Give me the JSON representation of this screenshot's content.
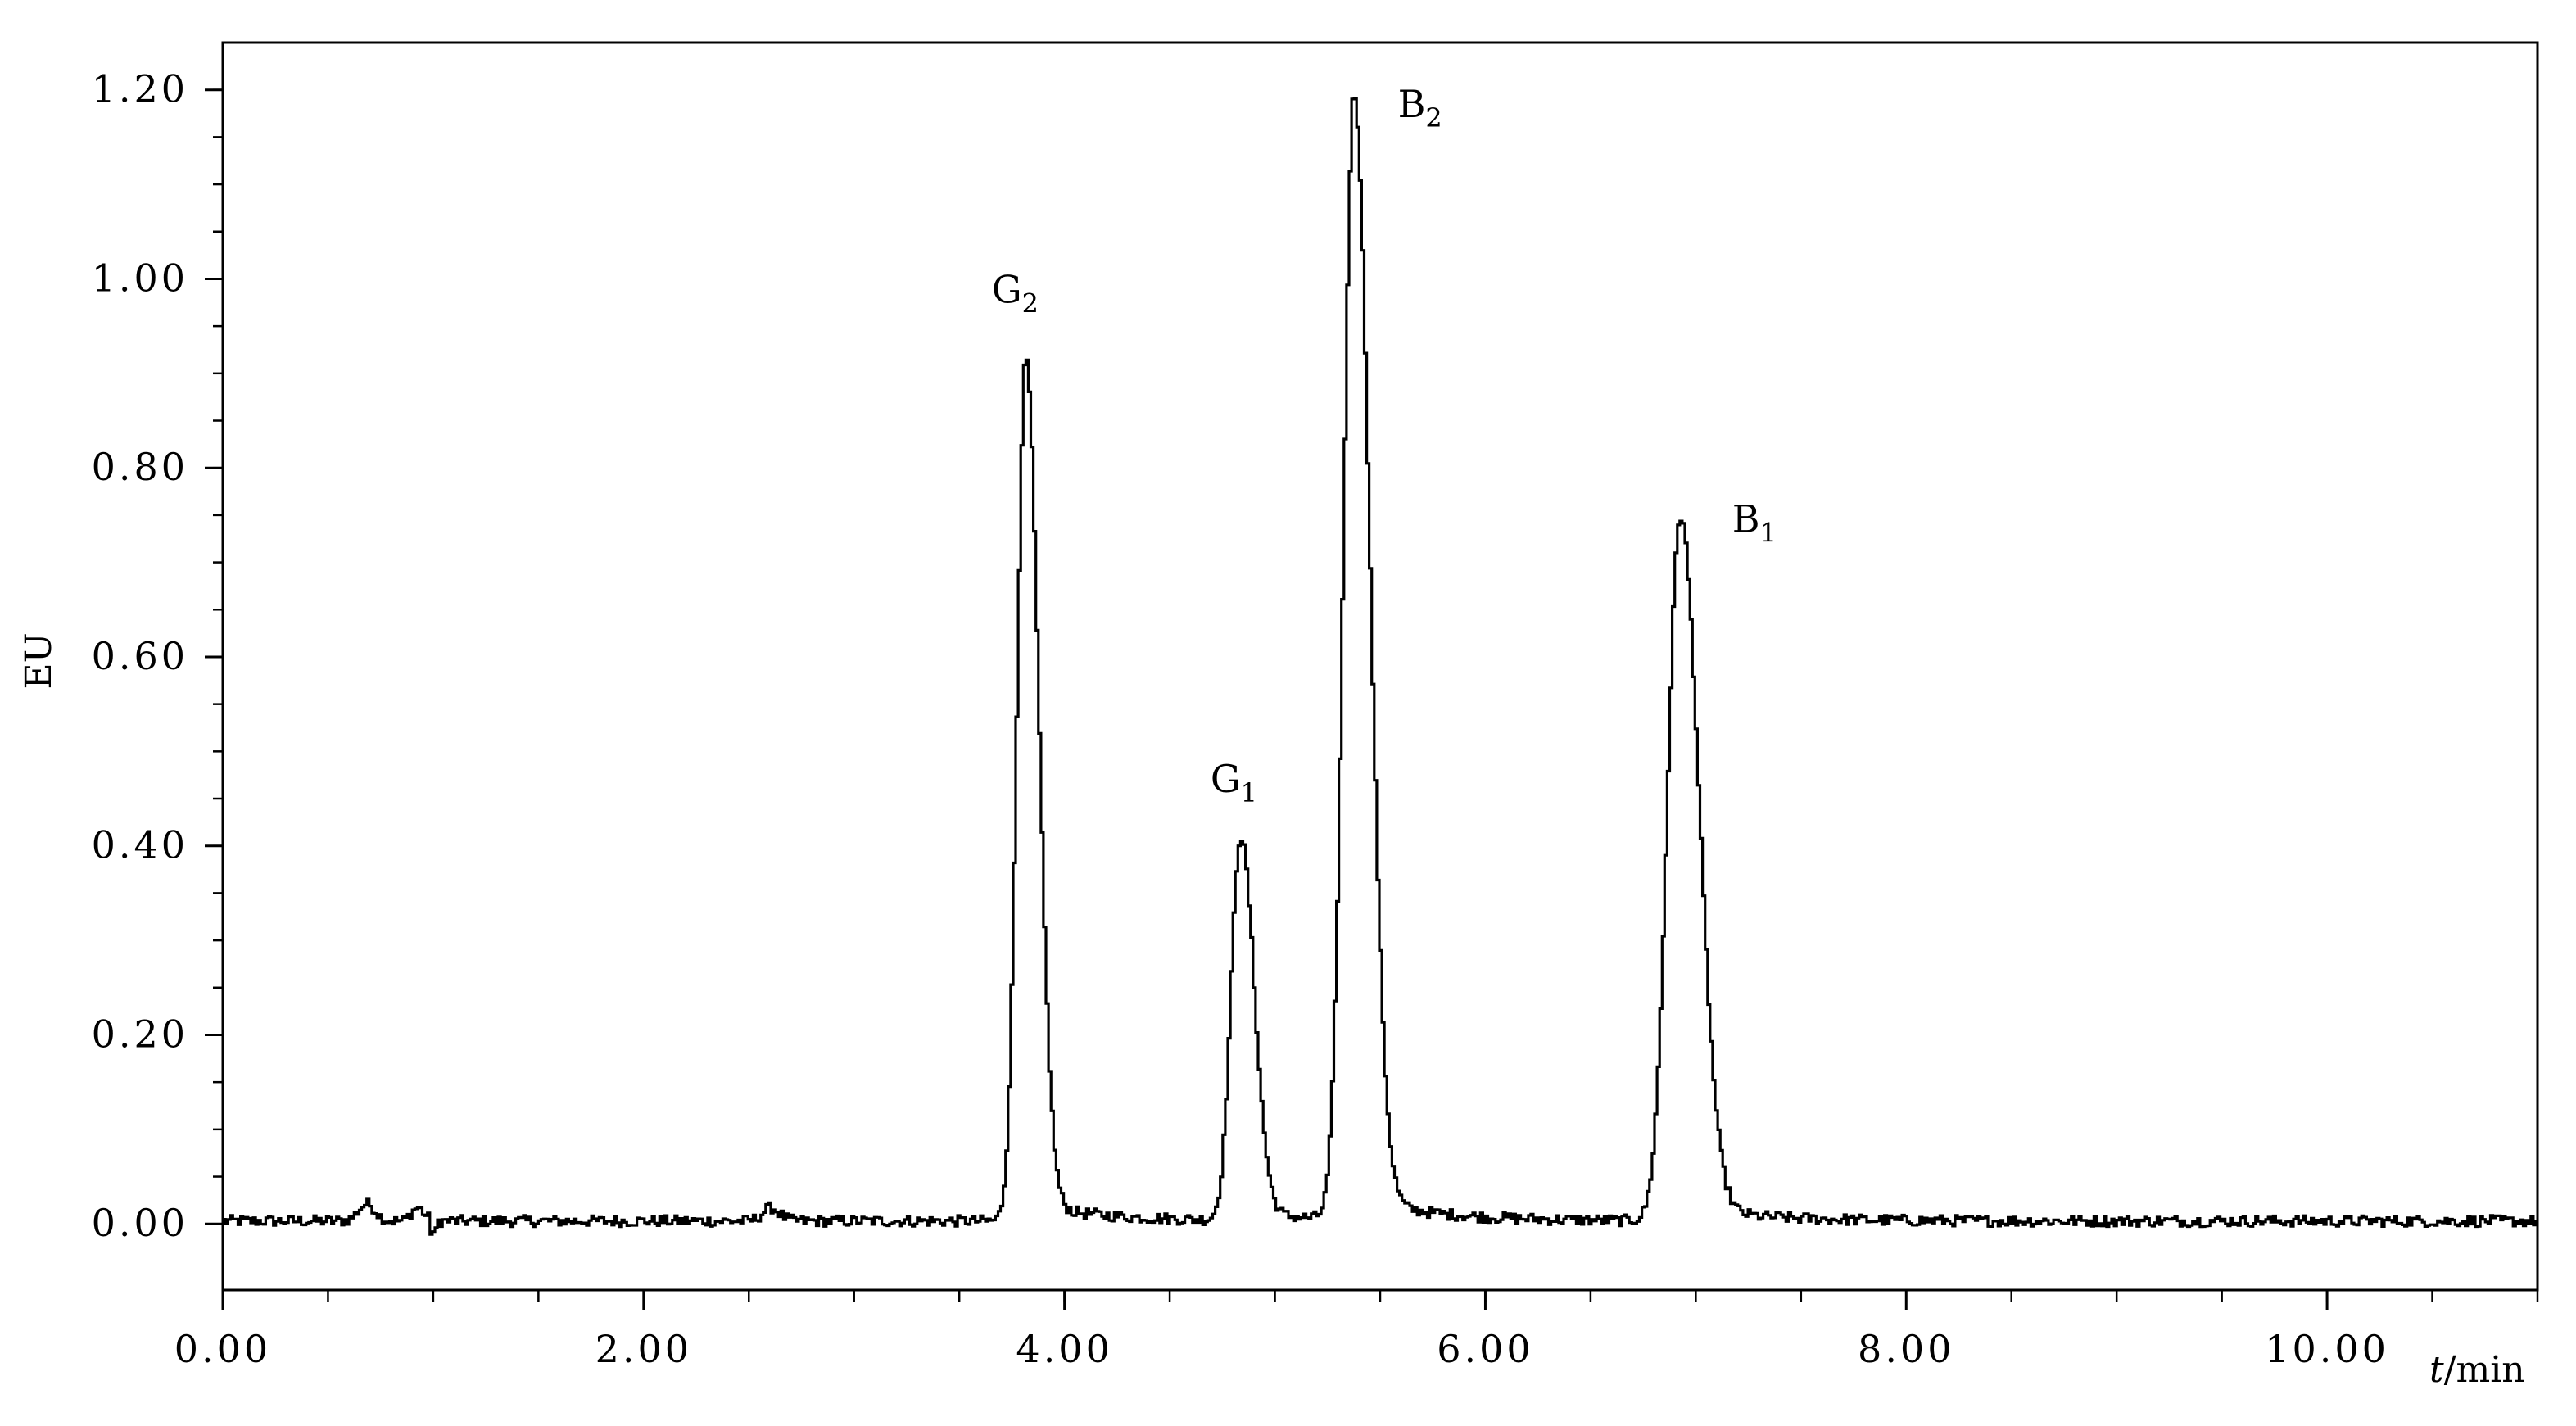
{
  "chart_data": {
    "type": "line",
    "title": "",
    "xlabel_italic": "t",
    "xlabel_unit": "/min",
    "ylabel": "EU",
    "xlim": [
      0,
      11
    ],
    "ylim": [
      -0.07,
      1.25
    ],
    "x_ticks": [
      0,
      2,
      4,
      6,
      8,
      10
    ],
    "x_tick_labels": [
      "0.00",
      "2.00",
      "4.00",
      "6.00",
      "8.00",
      "10.00"
    ],
    "x_minor_step": 0.5,
    "y_ticks": [
      0,
      0.2,
      0.4,
      0.6,
      0.8,
      1.0,
      1.2
    ],
    "y_tick_labels": [
      "0.00",
      "0.20",
      "0.40",
      "0.60",
      "0.80",
      "1.00",
      "1.20"
    ],
    "y_minor_step": 0.05,
    "grid": false,
    "line_color": "#000000",
    "series": [
      {
        "peaks": [
          {
            "label": "G",
            "subscript": "2",
            "x": 3.81,
            "height": 0.91
          },
          {
            "label": "G",
            "subscript": "1",
            "x": 4.83,
            "height": 0.405
          },
          {
            "label": "B",
            "subscript": "2",
            "x": 5.37,
            "height": 1.19
          },
          {
            "label": "B",
            "subscript": "1",
            "x": 6.92,
            "height": 0.745
          }
        ]
      }
    ]
  }
}
